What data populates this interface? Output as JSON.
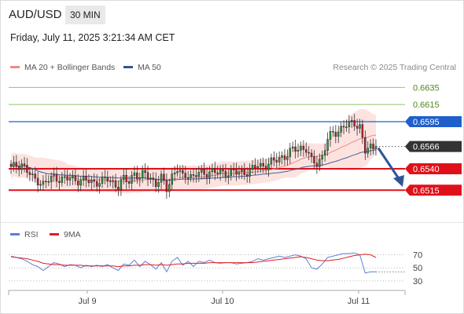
{
  "header": {
    "symbol": "AUD/USD",
    "timeframe": "30 MIN",
    "datetime": "Friday, July 11, 2025 3:21:34 AM CET",
    "credit": "Research © 2025 Trading Central"
  },
  "legend_main": [
    {
      "label": "MA 20 + Bollinger Bands",
      "color": "#f08a84"
    },
    {
      "label": "MA 50",
      "color": "#2f5597"
    }
  ],
  "legend_rsi": [
    {
      "label": "RSI",
      "color": "#5b7fd6"
    },
    {
      "label": "9MA",
      "color": "#e02020"
    }
  ],
  "chart_data": [
    {
      "type": "candlestick",
      "title": "",
      "ylim": [
        0.6485,
        0.665
      ],
      "x_ticks": [
        "Jul 9",
        "Jul 10",
        "Jul 11"
      ],
      "levels": [
        {
          "value": 0.6635,
          "label": "0.6635",
          "kind": "target",
          "color": "#8fc46b",
          "label_color": "#4d8a1c"
        },
        {
          "value": 0.6615,
          "label": "0.6615",
          "kind": "target",
          "color": "#8fc46b",
          "label_color": "#4d8a1c"
        },
        {
          "value": 0.6595,
          "label": "0.6595",
          "kind": "pivot",
          "color": "#1f5fcc",
          "label_color": "#ffffff"
        },
        {
          "value": 0.6566,
          "label": "0.6566",
          "kind": "last",
          "color": "#333333",
          "label_color": "#ffffff"
        },
        {
          "value": 0.654,
          "label": "0.6540",
          "kind": "support",
          "color": "#e0101a",
          "label_color": "#ffffff"
        },
        {
          "value": 0.6515,
          "label": "0.6515",
          "kind": "support",
          "color": "#e0101a",
          "label_color": "#ffffff"
        }
      ],
      "close_path": [
        0.654,
        0.6544,
        0.6546,
        0.6537,
        0.6529,
        0.6527,
        0.6522,
        0.6526,
        0.6531,
        0.6529,
        0.6527,
        0.6529,
        0.6528,
        0.6526,
        0.6526,
        0.6525,
        0.6525,
        0.6525,
        0.6528,
        0.6524,
        0.652,
        0.6527,
        0.6526,
        0.6536,
        0.6528,
        0.6535,
        0.653,
        0.6522,
        0.6528,
        0.6518,
        0.6532,
        0.6539,
        0.653,
        0.6535,
        0.653,
        0.6535,
        0.6534,
        0.6538,
        0.6535,
        0.6535,
        0.6536,
        0.6536,
        0.6535,
        0.6536,
        0.6537,
        0.6539,
        0.6544,
        0.6544,
        0.6546,
        0.6548,
        0.6553,
        0.6555,
        0.6559,
        0.6563,
        0.6565,
        0.6563,
        0.6548,
        0.6547,
        0.6555,
        0.6574,
        0.6581,
        0.6585,
        0.659,
        0.6591,
        0.6594,
        0.659,
        0.656,
        0.6564,
        0.6566
      ],
      "annotations": [
        {
          "type": "arrow",
          "direction": "down",
          "from": 0.6566,
          "to": 0.6518
        }
      ]
    },
    {
      "type": "line",
      "title": "",
      "ylim": [
        25,
        78
      ],
      "y_ticks": [
        70,
        50,
        30
      ],
      "series": [
        {
          "name": "RSI",
          "color": "#5b7fd6",
          "values": [
            68,
            66,
            64,
            60,
            55,
            52,
            46,
            52,
            58,
            56,
            52,
            55,
            54,
            50,
            54,
            52,
            54,
            52,
            55,
            50,
            46,
            56,
            54,
            62,
            52,
            60,
            55,
            48,
            58,
            44,
            60,
            66,
            54,
            60,
            52,
            60,
            58,
            62,
            58,
            57,
            58,
            58,
            56,
            57,
            58,
            60,
            64,
            62,
            64,
            66,
            68,
            66,
            68,
            70,
            68,
            64,
            50,
            48,
            56,
            66,
            68,
            70,
            72,
            72,
            73,
            70,
            42,
            44,
            44
          ]
        },
        {
          "name": "9MA",
          "color": "#e02020",
          "values": [
            67,
            66,
            65,
            64,
            62,
            60,
            57,
            56,
            55,
            55,
            54,
            54,
            54,
            54,
            53,
            53,
            53,
            53,
            53,
            53,
            52,
            53,
            53,
            54,
            54,
            55,
            55,
            54,
            55,
            54,
            55,
            56,
            56,
            57,
            57,
            57,
            57,
            58,
            58,
            58,
            58,
            58,
            58,
            58,
            58,
            58,
            59,
            60,
            61,
            62,
            63,
            64,
            65,
            66,
            67,
            66,
            64,
            62,
            61,
            61,
            62,
            63,
            65,
            67,
            69,
            70,
            71,
            70,
            66
          ]
        }
      ]
    }
  ]
}
